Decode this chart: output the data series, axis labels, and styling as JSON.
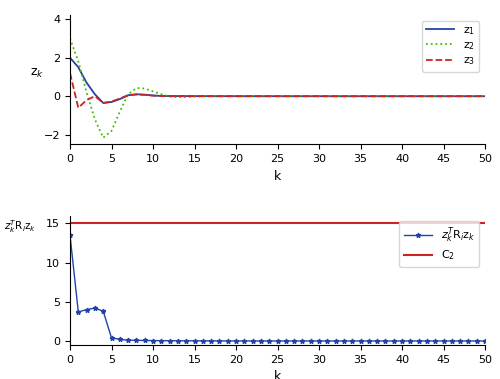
{
  "k_max": 50,
  "C2": 15,
  "plot1_ylim": [
    -2.5,
    4.2
  ],
  "plot2_ylim": [
    -0.5,
    16
  ],
  "plot1_yticks": [
    -2,
    0,
    2,
    4
  ],
  "plot2_yticks": [
    0,
    5,
    10,
    15
  ],
  "xticks": [
    0,
    5,
    10,
    15,
    20,
    25,
    30,
    35,
    40,
    45,
    50
  ],
  "color_z1": "#2244aa",
  "color_z2": "#44bb00",
  "color_z3": "#cc2222",
  "color_C2": "#cc2222",
  "color_quad": "#2244aa",
  "legend1_labels": [
    "z$_1$",
    "z$_2$",
    "z$_3$"
  ],
  "legend2_labels": [
    "$z_k^T$R$_i$z$_k$",
    "C$_2$"
  ],
  "xlabel": "k",
  "ylabel1": "z$_k$",
  "ylabel2": "$z_k^T$R$_i$z$_k$"
}
